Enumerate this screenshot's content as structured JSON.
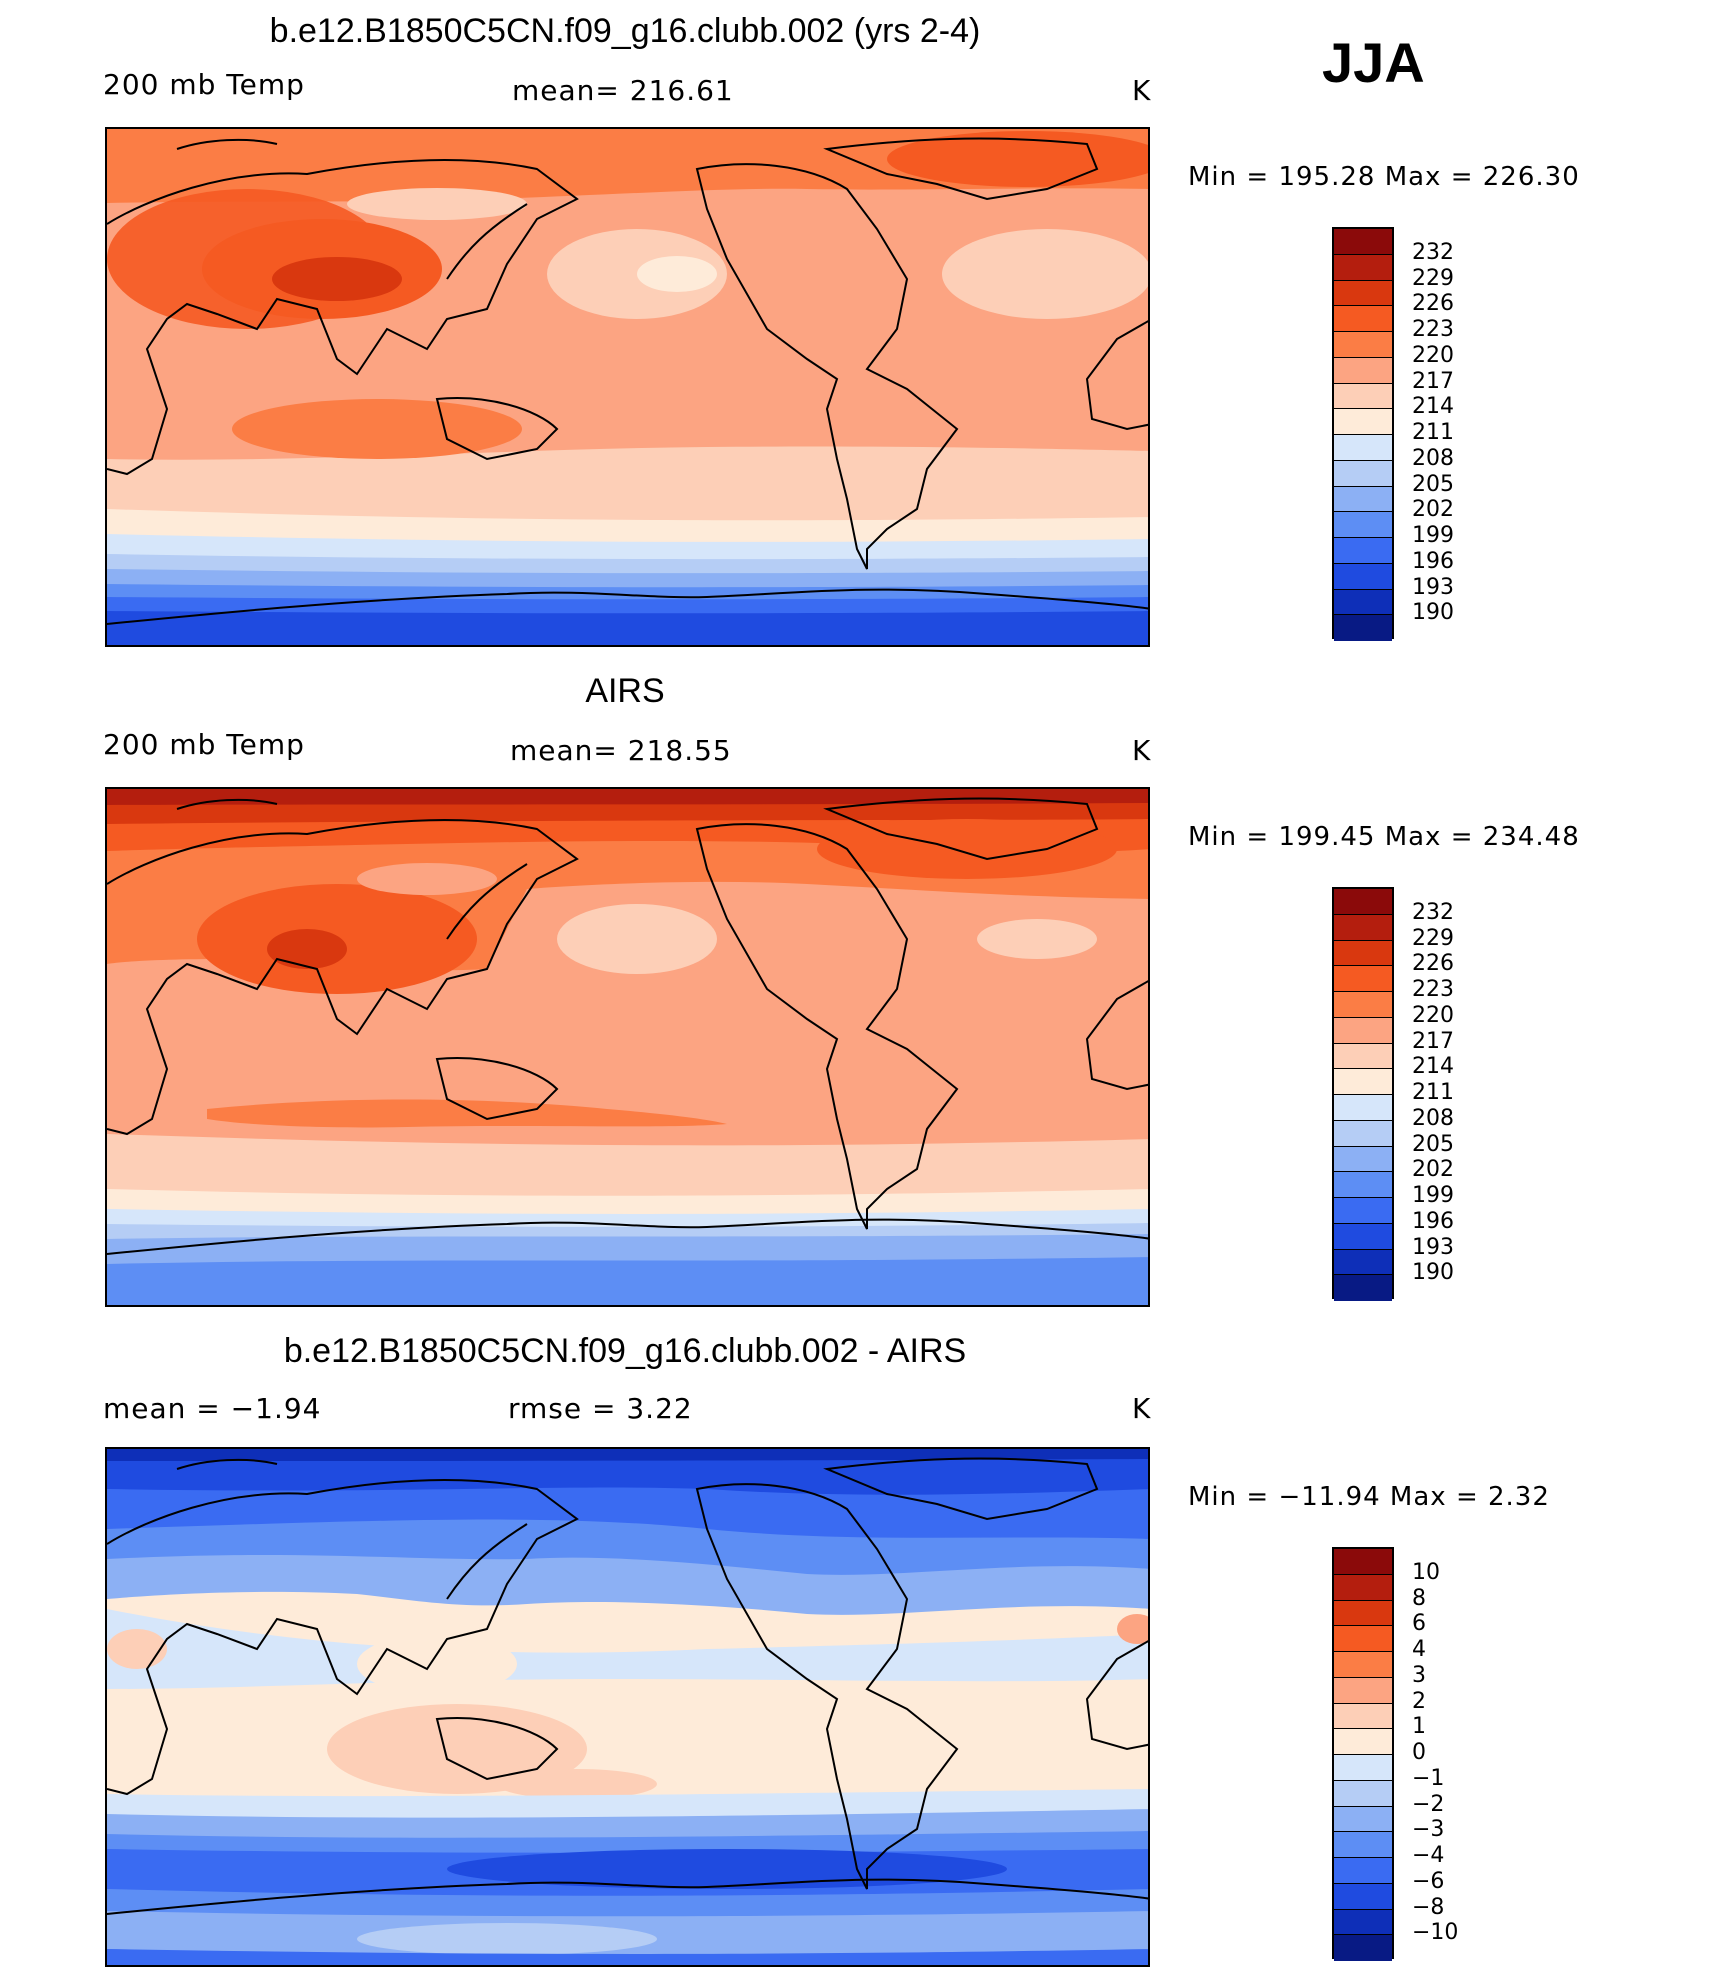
{
  "season": "JJA",
  "panels": [
    {
      "title": "b.e12.B1850C5CN.f09_g16.clubb.002 (yrs 2-4)",
      "left_label": "200 mb Temp",
      "center_label": "mean= 216.61",
      "units": "K",
      "minmax": "Min = 195.28 Max = 226.30",
      "colorbar_labels": [
        "232",
        "229",
        "226",
        "223",
        "220",
        "217",
        "214",
        "211",
        "208",
        "205",
        "202",
        "199",
        "196",
        "193",
        "190"
      ],
      "colors": [
        "#8b0a0a",
        "#b41e0e",
        "#d9380f",
        "#f55a22",
        "#fb7d45",
        "#fca482",
        "#fdcfb7",
        "#feebd9",
        "#d6e6fa",
        "#b5cdf5",
        "#8cb0f4",
        "#5d8ef4",
        "#3a6bf2",
        "#1f4be0",
        "#0e2fb8",
        "#081a84"
      ],
      "land_labels": []
    },
    {
      "title": "AIRS",
      "left_label": "200 mb Temp",
      "center_label": "mean= 218.55",
      "units": "K",
      "minmax": "Min = 199.45 Max = 234.48",
      "colorbar_labels": [
        "232",
        "229",
        "226",
        "223",
        "220",
        "217",
        "214",
        "211",
        "208",
        "205",
        "202",
        "199",
        "196",
        "193",
        "190"
      ],
      "colors": [
        "#8b0a0a",
        "#b41e0e",
        "#d9380f",
        "#f55a22",
        "#fb7d45",
        "#fca482",
        "#fdcfb7",
        "#feebd9",
        "#d6e6fa",
        "#b5cdf5",
        "#8cb0f4",
        "#5d8ef4",
        "#3a6bf2",
        "#1f4be0",
        "#0e2fb8",
        "#081a84"
      ]
    },
    {
      "title": "b.e12.B1850C5CN.f09_g16.clubb.002 - AIRS",
      "left_label": "mean =   −1.94",
      "center_label": "rmse =    3.22",
      "units": "K",
      "minmax": "Min = −11.94 Max =    2.32",
      "colorbar_labels": [
        "10",
        "8",
        "6",
        "4",
        "3",
        "2",
        "1",
        "0",
        "−1",
        "−2",
        "−3",
        "−4",
        "−6",
        "−8",
        "−10"
      ],
      "colors": [
        "#8b0a0a",
        "#b41e0e",
        "#d9380f",
        "#f55a22",
        "#fb7d45",
        "#fca482",
        "#fdcfb7",
        "#feebd9",
        "#d6e6fa",
        "#b5cdf5",
        "#8cb0f4",
        "#5d8ef4",
        "#3a6bf2",
        "#1f4be0",
        "#0e2fb8",
        "#081a84"
      ]
    }
  ]
}
